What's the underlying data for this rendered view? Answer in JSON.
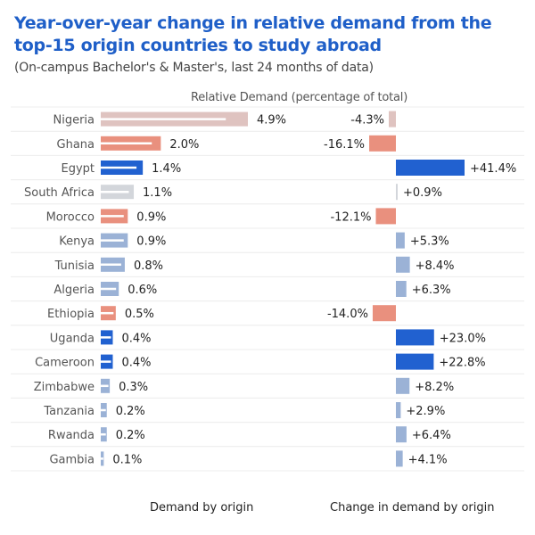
{
  "title": "Year-over-year change in relative demand from the top-15 origin countries to study abroad",
  "subtitle": "(On-campus Bachelor's & Master's, last 24 months of data)",
  "dimension_header": "Relative Demand (percentage of total)",
  "panel_labels": {
    "left": "Demand by origin",
    "right": "Change in demand by origin"
  },
  "colors": {
    "title": "#1f5fc8",
    "neutral": "#d3d6db",
    "negative": "#e9907e",
    "strong_positive": "#2161d0",
    "positive": "#9bb2d6",
    "nigeria": "#dfc3c0"
  },
  "chart_data": [
    {
      "type": "bar",
      "orientation": "horizontal",
      "title": "Demand by origin",
      "categories": [
        "Nigeria",
        "Ghana",
        "Egypt",
        "South Africa",
        "Morocco",
        "Kenya",
        "Tunisia",
        "Algeria",
        "Ethiopia",
        "Uganda",
        "Cameroon",
        "Zimbabwe",
        "Tanzania",
        "Rwanda",
        "Gambia"
      ],
      "series": [
        {
          "values": [
            4.9,
            2.0,
            1.4,
            1.1,
            0.9,
            0.9,
            0.8,
            0.6,
            0.5,
            0.4,
            0.4,
            0.3,
            0.2,
            0.2,
            0.1
          ]
        }
      ],
      "value_labels": [
        "4.9%",
        "2.0%",
        "1.4%",
        "1.1%",
        "0.9%",
        "0.9%",
        "0.8%",
        "0.6%",
        "0.5%",
        "0.4%",
        "0.4%",
        "0.3%",
        "0.2%",
        "0.2%",
        "0.1%"
      ],
      "xlim": [
        0,
        5
      ]
    },
    {
      "type": "bar",
      "orientation": "horizontal",
      "title": "Change in demand by origin",
      "categories": [
        "Nigeria",
        "Ghana",
        "Egypt",
        "South Africa",
        "Morocco",
        "Kenya",
        "Tunisia",
        "Algeria",
        "Ethiopia",
        "Uganda",
        "Cameroon",
        "Zimbabwe",
        "Tanzania",
        "Rwanda",
        "Gambia"
      ],
      "series": [
        {
          "values": [
            -4.3,
            -16.1,
            41.4,
            0.9,
            -12.1,
            5.3,
            8.4,
            6.3,
            -14.0,
            23.0,
            22.8,
            8.2,
            2.9,
            6.4,
            4.1
          ]
        }
      ],
      "value_labels": [
        "-4.3%",
        "-16.1%",
        "+41.4%",
        "+0.9%",
        "-12.1%",
        "+5.3%",
        "+8.4%",
        "+6.3%",
        "-14.0%",
        "+23.0%",
        "+22.8%",
        "+8.2%",
        "+2.9%",
        "+6.4%",
        "+4.1%"
      ],
      "xlim": [
        -20,
        45
      ],
      "grid": false
    }
  ]
}
